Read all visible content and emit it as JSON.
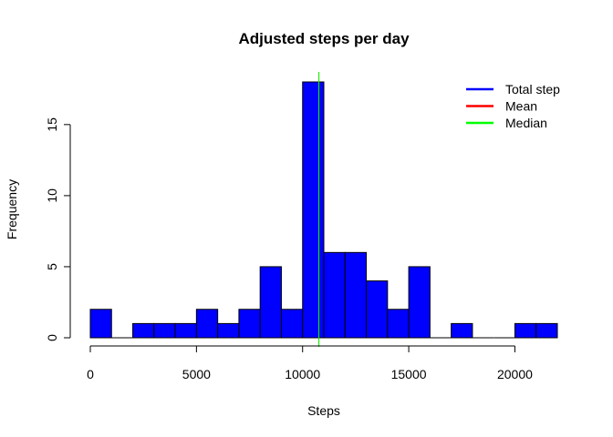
{
  "chart_data": {
    "type": "bar",
    "title": "Adjusted steps per day",
    "xlabel": "Steps",
    "ylabel": "Frequency",
    "xlim": [
      0,
      22000
    ],
    "ylim": [
      0,
      18
    ],
    "bin_width": 1000,
    "bins": [
      {
        "start": 0,
        "end": 1000,
        "count": 2
      },
      {
        "start": 1000,
        "end": 2000,
        "count": 0
      },
      {
        "start": 2000,
        "end": 3000,
        "count": 1
      },
      {
        "start": 3000,
        "end": 4000,
        "count": 1
      },
      {
        "start": 4000,
        "end": 5000,
        "count": 1
      },
      {
        "start": 5000,
        "end": 6000,
        "count": 2
      },
      {
        "start": 6000,
        "end": 7000,
        "count": 1
      },
      {
        "start": 7000,
        "end": 8000,
        "count": 2
      },
      {
        "start": 8000,
        "end": 9000,
        "count": 5
      },
      {
        "start": 9000,
        "end": 10000,
        "count": 2
      },
      {
        "start": 10000,
        "end": 11000,
        "count": 18
      },
      {
        "start": 11000,
        "end": 12000,
        "count": 6
      },
      {
        "start": 12000,
        "end": 13000,
        "count": 6
      },
      {
        "start": 13000,
        "end": 14000,
        "count": 4
      },
      {
        "start": 14000,
        "end": 15000,
        "count": 2
      },
      {
        "start": 15000,
        "end": 16000,
        "count": 5
      },
      {
        "start": 16000,
        "end": 17000,
        "count": 0
      },
      {
        "start": 17000,
        "end": 18000,
        "count": 1
      },
      {
        "start": 18000,
        "end": 19000,
        "count": 0
      },
      {
        "start": 19000,
        "end": 20000,
        "count": 0
      },
      {
        "start": 20000,
        "end": 21000,
        "count": 1
      },
      {
        "start": 21000,
        "end": 22000,
        "count": 1
      }
    ],
    "x_ticks": [
      0,
      5000,
      10000,
      15000,
      20000
    ],
    "y_ticks": [
      0,
      5,
      10,
      15
    ],
    "bar_color": "#0000FF",
    "vlines": [
      {
        "name": "Mean",
        "value": 10766,
        "color": "#FF0000"
      },
      {
        "name": "Median",
        "value": 10766,
        "color": "#00FF00"
      }
    ],
    "legend": {
      "position": "top-right",
      "entries": [
        {
          "label": "Total step",
          "color": "#0000FF"
        },
        {
          "label": "Mean",
          "color": "#FF0000"
        },
        {
          "label": "Median",
          "color": "#00FF00"
        }
      ]
    },
    "grid": false
  }
}
